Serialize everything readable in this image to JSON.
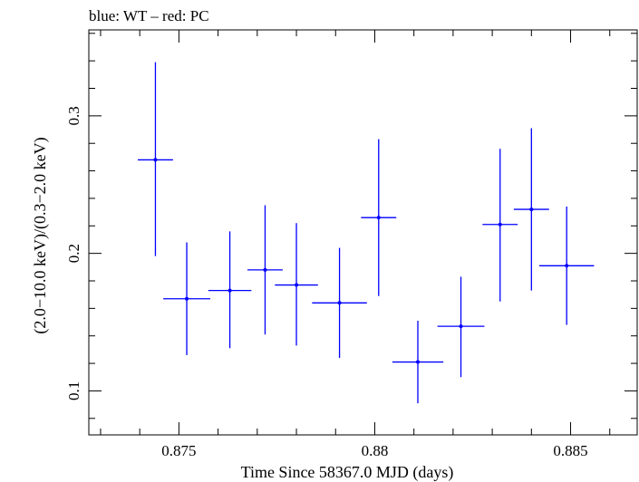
{
  "chart_data": {
    "type": "scatter",
    "title": "blue: WT – red: PC",
    "xlabel": "Time Since 58367.0 MJD (days)",
    "ylabel": "(2.0−10.0 keV)/(0.3−2.0 keV)",
    "xlim": [
      0.8727,
      0.8867
    ],
    "ylim": [
      0.068,
      0.3625
    ],
    "x_ticks": [
      "0.875",
      "0.88",
      "0.885"
    ],
    "y_ticks": [
      "0.1",
      "0.2",
      "0.3"
    ],
    "grid": false,
    "series": [
      {
        "color": "#0000ff",
        "points": [
          {
            "x": 0.8744,
            "xerr": 0.00045,
            "y": 0.268,
            "yerr_low": 0.07,
            "yerr_high": 0.071
          },
          {
            "x": 0.8752,
            "xerr": 0.0006,
            "y": 0.167,
            "yerr_low": 0.041,
            "yerr_high": 0.041
          },
          {
            "x": 0.8763,
            "xerr": 0.00055,
            "y": 0.173,
            "yerr_low": 0.042,
            "yerr_high": 0.043
          },
          {
            "x": 0.8772,
            "xerr": 0.00045,
            "y": 0.188,
            "yerr_low": 0.047,
            "yerr_high": 0.047
          },
          {
            "x": 0.878,
            "xerr": 0.00055,
            "y": 0.177,
            "yerr_low": 0.044,
            "yerr_high": 0.045
          },
          {
            "x": 0.8791,
            "xerr": 0.0007,
            "y": 0.164,
            "yerr_low": 0.04,
            "yerr_high": 0.04
          },
          {
            "x": 0.8801,
            "xerr": 0.00045,
            "y": 0.226,
            "yerr_low": 0.057,
            "yerr_high": 0.057
          },
          {
            "x": 0.8811,
            "xerr": 0.00065,
            "y": 0.121,
            "yerr_low": 0.03,
            "yerr_high": 0.03
          },
          {
            "x": 0.8822,
            "xerr": 0.0006,
            "y": 0.147,
            "yerr_low": 0.037,
            "yerr_high": 0.036
          },
          {
            "x": 0.8832,
            "xerr": 0.00045,
            "y": 0.221,
            "yerr_low": 0.056,
            "yerr_high": 0.055
          },
          {
            "x": 0.884,
            "xerr": 0.00045,
            "y": 0.232,
            "yerr_low": 0.059,
            "yerr_high": 0.059
          },
          {
            "x": 0.8849,
            "xerr": 0.0007,
            "y": 0.191,
            "yerr_low": 0.043,
            "yerr_high": 0.043
          }
        ]
      }
    ]
  }
}
